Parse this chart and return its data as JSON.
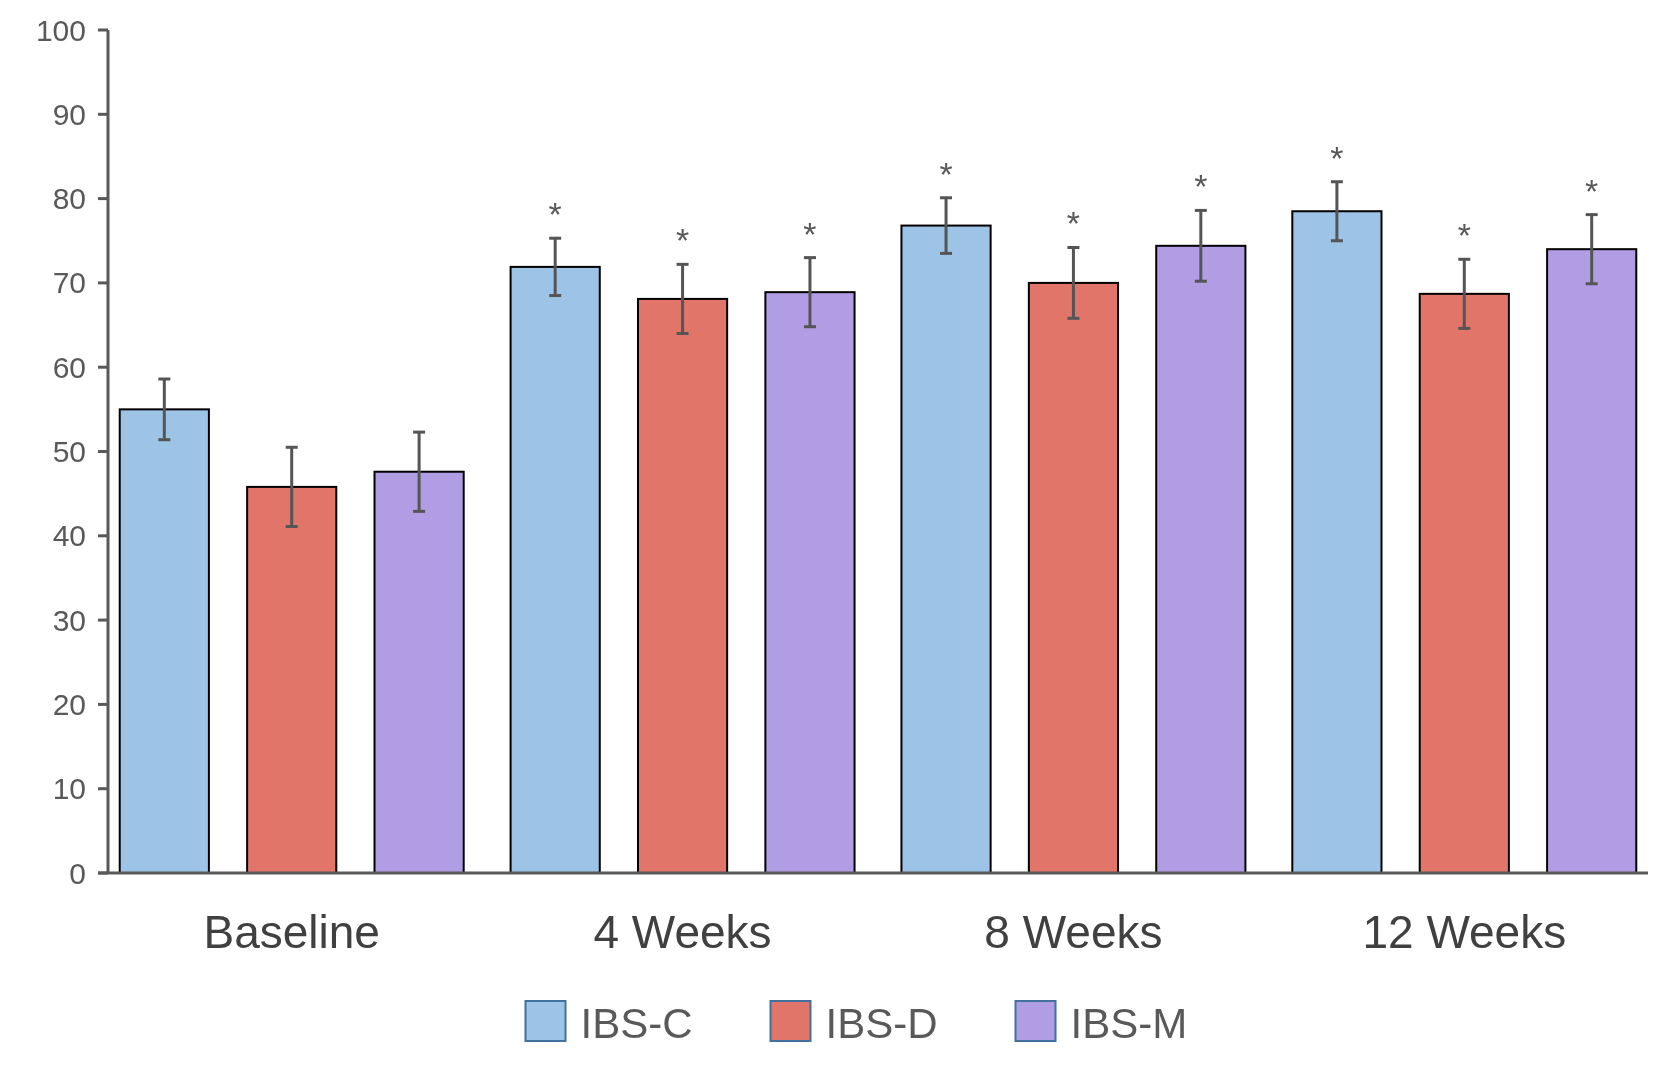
{
  "chart_data": {
    "type": "bar",
    "categories": [
      "Baseline",
      "4 Weeks",
      "8 Weeks",
      "12 Weeks"
    ],
    "series": [
      {
        "name": "IBS-C",
        "color": "#9dc3e6",
        "values": [
          55.0,
          71.9,
          76.8,
          78.5
        ],
        "errors": [
          3.6,
          3.4,
          3.3,
          3.5
        ],
        "value_labels": [
          null,
          "*",
          "*",
          "*"
        ]
      },
      {
        "name": "IBS-D",
        "color": "#e2756a",
        "values": [
          45.8,
          68.1,
          70.0,
          68.7
        ],
        "errors": [
          4.7,
          4.1,
          4.2,
          4.1
        ],
        "value_labels": [
          null,
          "*",
          "*",
          "*"
        ]
      },
      {
        "name": "IBS-M",
        "color": "#b19de4",
        "values": [
          47.6,
          68.9,
          74.4,
          74.0
        ],
        "errors": [
          4.7,
          4.1,
          4.2,
          4.1
        ],
        "value_labels": [
          null,
          "*",
          "*",
          "*"
        ]
      }
    ],
    "ylim": [
      0,
      100
    ],
    "yticks": [
      0,
      10,
      20,
      30,
      40,
      50,
      60,
      70,
      80,
      90,
      100
    ],
    "grid": false,
    "legend": "bottom"
  }
}
